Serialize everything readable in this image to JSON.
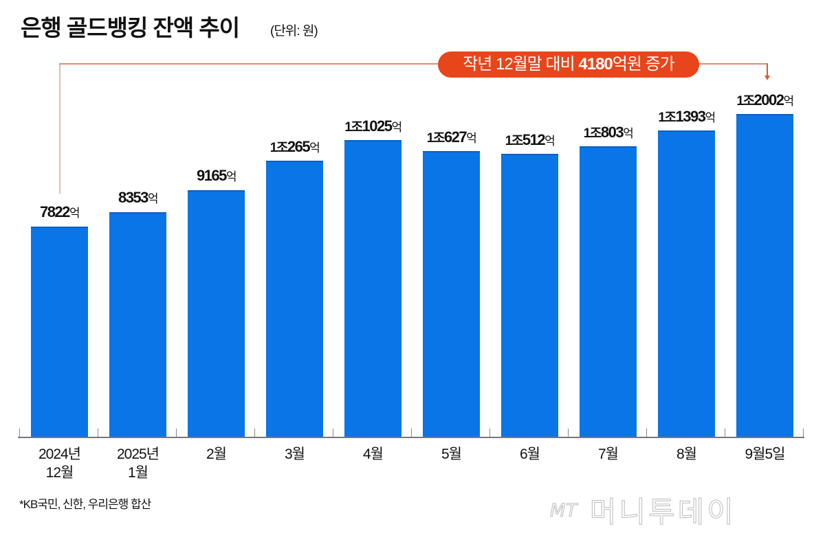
{
  "header": {
    "title": "은행 골드뱅킹 잔액 추이",
    "unit": "(단위: 원)"
  },
  "callout": {
    "prefix": "작년 12월말 대비 ",
    "highlight": "4180",
    "suffix": "억원 증가",
    "color": "#e8451a"
  },
  "bars": [
    {
      "category_line1": "2024년",
      "category_line2": "12월",
      "label_num": "7822",
      "label_pre": "",
      "suffix": "억",
      "value": 7822
    },
    {
      "category_line1": "2025년",
      "category_line2": "1월",
      "label_num": "8353",
      "label_pre": "",
      "suffix": "억",
      "value": 8353
    },
    {
      "category_line1": "2월",
      "category_line2": "",
      "label_num": "9165",
      "label_pre": "",
      "suffix": "억",
      "value": 9165
    },
    {
      "category_line1": "3월",
      "category_line2": "",
      "label_num": "265",
      "label_pre": "1조",
      "suffix": "억",
      "value": 10265
    },
    {
      "category_line1": "4월",
      "category_line2": "",
      "label_num": "1025",
      "label_pre": "1조",
      "suffix": "억",
      "value": 11025
    },
    {
      "category_line1": "5월",
      "category_line2": "",
      "label_num": "627",
      "label_pre": "1조",
      "suffix": "억",
      "value": 10627
    },
    {
      "category_line1": "6월",
      "category_line2": "",
      "label_num": "512",
      "label_pre": "1조",
      "suffix": "억",
      "value": 10512
    },
    {
      "category_line1": "7월",
      "category_line2": "",
      "label_num": "803",
      "label_pre": "1조",
      "suffix": "억",
      "value": 10803
    },
    {
      "category_line1": "8월",
      "category_line2": "",
      "label_num": "1393",
      "label_pre": "1조",
      "suffix": "억",
      "value": 11393
    },
    {
      "category_line1": "9월5일",
      "category_line2": "",
      "label_num": "2002",
      "label_pre": "1조",
      "suffix": "억",
      "value": 12002
    }
  ],
  "footnote": "*KB국민, 신한, 우리은행 합산",
  "watermark": {
    "mt": "MT",
    "name": "머니투데이"
  },
  "colors": {
    "bar": "#0a75e6",
    "callout": "#e8451a",
    "connector": "#e08a78"
  },
  "chart_data": {
    "type": "bar",
    "title": "은행 골드뱅킹 잔액 추이",
    "subtitle": "(단위: 원)",
    "categories": [
      "2024년 12월",
      "2025년 1월",
      "2월",
      "3월",
      "4월",
      "5월",
      "6월",
      "7월",
      "8월",
      "9월5일"
    ],
    "values": [
      7822,
      8353,
      9165,
      10265,
      11025,
      10627,
      10512,
      10803,
      11393,
      12002
    ],
    "value_unit": "억원",
    "data_labels": [
      "7822억",
      "8353억",
      "9165억",
      "1조265억",
      "1조1025억",
      "1조627억",
      "1조512억",
      "1조803억",
      "1조1393억",
      "1조2002억"
    ],
    "annotations": [
      "작년 12월말 대비 4180억원 증가"
    ],
    "footnote": "*KB국민, 신한, 우리은행 합산",
    "xlabel": "",
    "ylabel": "",
    "grid": false,
    "legend": null
  }
}
